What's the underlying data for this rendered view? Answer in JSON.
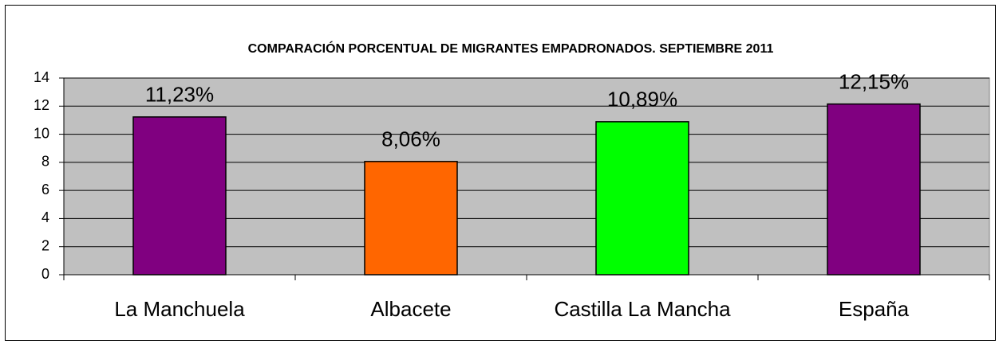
{
  "chart_data": {
    "type": "bar",
    "title": "COMPARACIÓN PORCENTUAL DE MIGRANTES EMPADRONADOS. SEPTIEMBRE 2011",
    "categories": [
      "La Manchuela",
      "Albacete",
      "Castilla La Mancha",
      "España"
    ],
    "values": [
      11.23,
      8.06,
      10.89,
      12.15
    ],
    "value_labels": [
      "11,23%",
      "8,06%",
      "10,89%",
      "12,15%"
    ],
    "colors": [
      "#800080",
      "#ff6600",
      "#00ff00",
      "#800080"
    ],
    "ylim": [
      0,
      14
    ],
    "yticks": [
      0,
      2,
      4,
      6,
      8,
      10,
      12,
      14
    ],
    "grid": true
  }
}
